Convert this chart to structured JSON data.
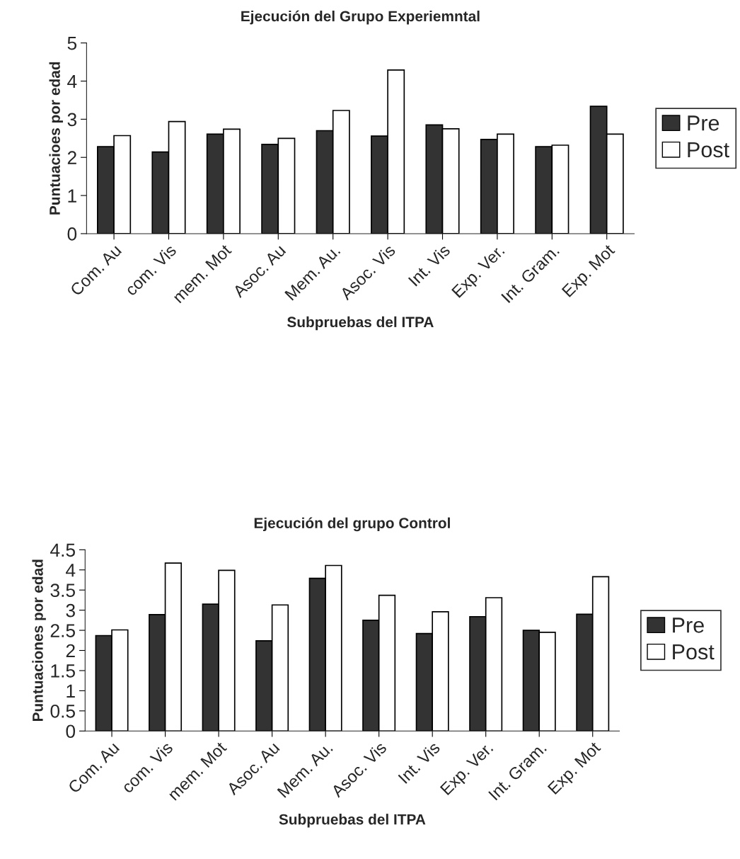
{
  "chart_data": [
    {
      "type": "bar",
      "title": "Ejecución del Grupo Experiemntal",
      "xlabel": "Subpruebas del ITPA",
      "ylabel": "Puntuacioes por edad",
      "categories": [
        "Com. Au",
        "com. Vis",
        "mem. Mot",
        "Asoc. Au",
        "Mem. Au.",
        "Asoc. Vis",
        "Int. Vis",
        "Exp. Ver.",
        "Int. Gram.",
        "Exp. Mot"
      ],
      "series": [
        {
          "name": "Pre",
          "color": "#333333",
          "values": [
            2.28,
            2.14,
            2.61,
            2.34,
            2.7,
            2.56,
            2.85,
            2.47,
            2.28,
            3.34
          ]
        },
        {
          "name": "Post",
          "color": "#ffffff",
          "values": [
            2.57,
            2.94,
            2.74,
            2.5,
            3.23,
            4.29,
            2.75,
            2.61,
            2.32,
            2.61
          ]
        }
      ],
      "ylim": [
        0,
        5
      ],
      "yticks": [
        0,
        1,
        2,
        3,
        4,
        5
      ],
      "grid": false,
      "legend": "right"
    },
    {
      "type": "bar",
      "title": "Ejecución del grupo Control",
      "xlabel": "Subpruebas del ITPA",
      "ylabel": "Puntuaciones por edad",
      "categories": [
        "Com. Au",
        "com. Vis",
        "mem. Mot",
        "Asoc. Au",
        "Mem. Au.",
        "Asoc. Vis",
        "Int. Vis",
        "Exp. Ver.",
        "Int. Gram.",
        "Exp. Mot"
      ],
      "series": [
        {
          "name": "Pre",
          "color": "#333333",
          "values": [
            2.37,
            2.89,
            3.15,
            2.24,
            3.79,
            2.75,
            2.42,
            2.84,
            2.5,
            2.9
          ]
        },
        {
          "name": "Post",
          "color": "#ffffff",
          "values": [
            2.51,
            4.17,
            3.99,
            3.13,
            4.11,
            3.37,
            2.96,
            3.31,
            2.45,
            3.83
          ]
        }
      ],
      "ylim": [
        0,
        4.5
      ],
      "yticks": [
        0,
        0.5,
        1,
        1.5,
        2,
        2.5,
        3,
        3.5,
        4,
        4.5
      ],
      "grid": false,
      "legend": "right"
    }
  ]
}
